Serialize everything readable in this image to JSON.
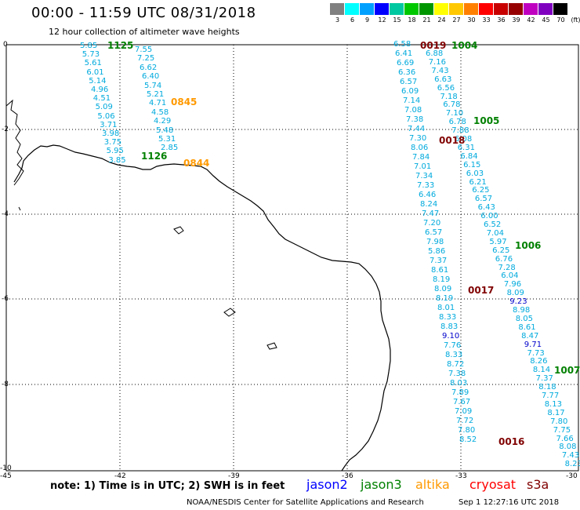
{
  "header": {
    "title": "00:00 - 11:59 UTC 08/31/2018",
    "subtitle": "12 hour collection of altimeter wave heights"
  },
  "colorbar": {
    "colors": [
      "#808080",
      "#00ffff",
      "#00a0ff",
      "#0000ff",
      "#00c8a0",
      "#00c800",
      "#009600",
      "#ffff00",
      "#ffc800",
      "#ff8000",
      "#ff0000",
      "#c80000",
      "#960000",
      "#c000c0",
      "#8000c0",
      "#000000"
    ],
    "labels": [
      "3",
      "6",
      "9",
      "12",
      "15",
      "18",
      "21",
      "24",
      "27",
      "30",
      "33",
      "36",
      "39",
      "42",
      "45",
      "70",
      "(ft)"
    ]
  },
  "axes": {
    "x_labels": [
      "-45",
      "-42",
      "-39",
      "-36",
      "-33",
      "-30"
    ],
    "y_labels": [
      "0",
      "-2",
      "-4",
      "-6",
      "-8",
      "-10"
    ]
  },
  "tracks": {
    "cyan_track_1": [
      "5.85",
      "5.73",
      "5.61",
      "6.01",
      "5.14",
      "4.96",
      "4.51",
      "5.09",
      "5.06",
      "3.71",
      "3.98",
      "3.75",
      "5.95",
      "3.85"
    ],
    "cyan_track_2": [
      "7.55",
      "7.25",
      "6.62",
      "6.40",
      "5.74",
      "5.21",
      "4.71",
      "4.58",
      "4.29",
      "5.48",
      "5.31",
      "2.85"
    ],
    "cyan_track_3": [
      "6.58",
      "6.41",
      "6.69",
      "6.36",
      "6.57",
      "6.09",
      "7.14",
      "7.08",
      "7.38",
      "7.44",
      "7.30",
      "8.06",
      "7.84",
      "7.01",
      "7.34",
      "7.33",
      "6.46",
      "8.24",
      "7.47",
      "7.20",
      "6.57",
      "7.98",
      "5.86",
      "7.37",
      "8.61",
      "8.19",
      "8.09",
      "8.19",
      "8.01",
      "8.33",
      "8.83",
      "9.10",
      "7.76",
      "8.33",
      "8.72",
      "7.38",
      "8.03",
      "7.89",
      "7.67",
      "7.09",
      "7.72",
      "7.80",
      "8.52"
    ],
    "cyan_track_4": [
      "6.88",
      "7.16",
      "7.43",
      "6.63",
      "6.56",
      "7.18",
      "6.78",
      "7.10",
      "6.78",
      "7.88",
      "6.08",
      "6.31",
      "6.84",
      "6.15",
      "6.03",
      "6.21",
      "6.25",
      "6.57",
      "6.43",
      "6.00",
      "6.52",
      "7.04",
      "5.97",
      "6.25",
      "6.76",
      "7.28",
      "6.04",
      "7.96",
      "8.09",
      "9.23",
      "8.98",
      "8.05",
      "8.61",
      "8.47",
      "9.71",
      "7.73",
      "8.26",
      "8.14",
      "7.37",
      "8.18",
      "7.77",
      "8.13",
      "8.17",
      "7.80",
      "7.75",
      "7.66",
      "8.08",
      "7.43",
      "8.23"
    ]
  },
  "time_labels": [
    {
      "text": "1125",
      "color": "#008000"
    },
    {
      "text": "0845",
      "color": "#ff9900"
    },
    {
      "text": "1126",
      "color": "#008000"
    },
    {
      "text": "0844",
      "color": "#ff9900"
    },
    {
      "text": "0019",
      "color": "#800000"
    },
    {
      "text": "1004",
      "color": "#008000"
    },
    {
      "text": "1005",
      "color": "#008000"
    },
    {
      "text": "0018",
      "color": "#800000"
    },
    {
      "text": "1006",
      "color": "#008000"
    },
    {
      "text": "0017",
      "color": "#800000"
    },
    {
      "text": "1007",
      "color": "#008000"
    },
    {
      "text": "0016",
      "color": "#800000"
    }
  ],
  "footer": {
    "note": "note: 1) Time is in UTC; 2) SWH is in feet",
    "legend": [
      {
        "label": "jason2",
        "color": "#0000ff"
      },
      {
        "label": "jason3",
        "color": "#008000"
      },
      {
        "label": "altika",
        "color": "#ff9900"
      },
      {
        "label": "cryosat",
        "color": "#ff0000"
      },
      {
        "label": "s3a",
        "color": "#800000"
      }
    ],
    "credit": "NOAA/NESDIS Center for Satellite Applications and Research",
    "timestamp": "Sep  1 12:27:16 UTC 2018"
  },
  "colors": {
    "val_cyan": "#00aadd",
    "val_blue": "#0000cc"
  }
}
